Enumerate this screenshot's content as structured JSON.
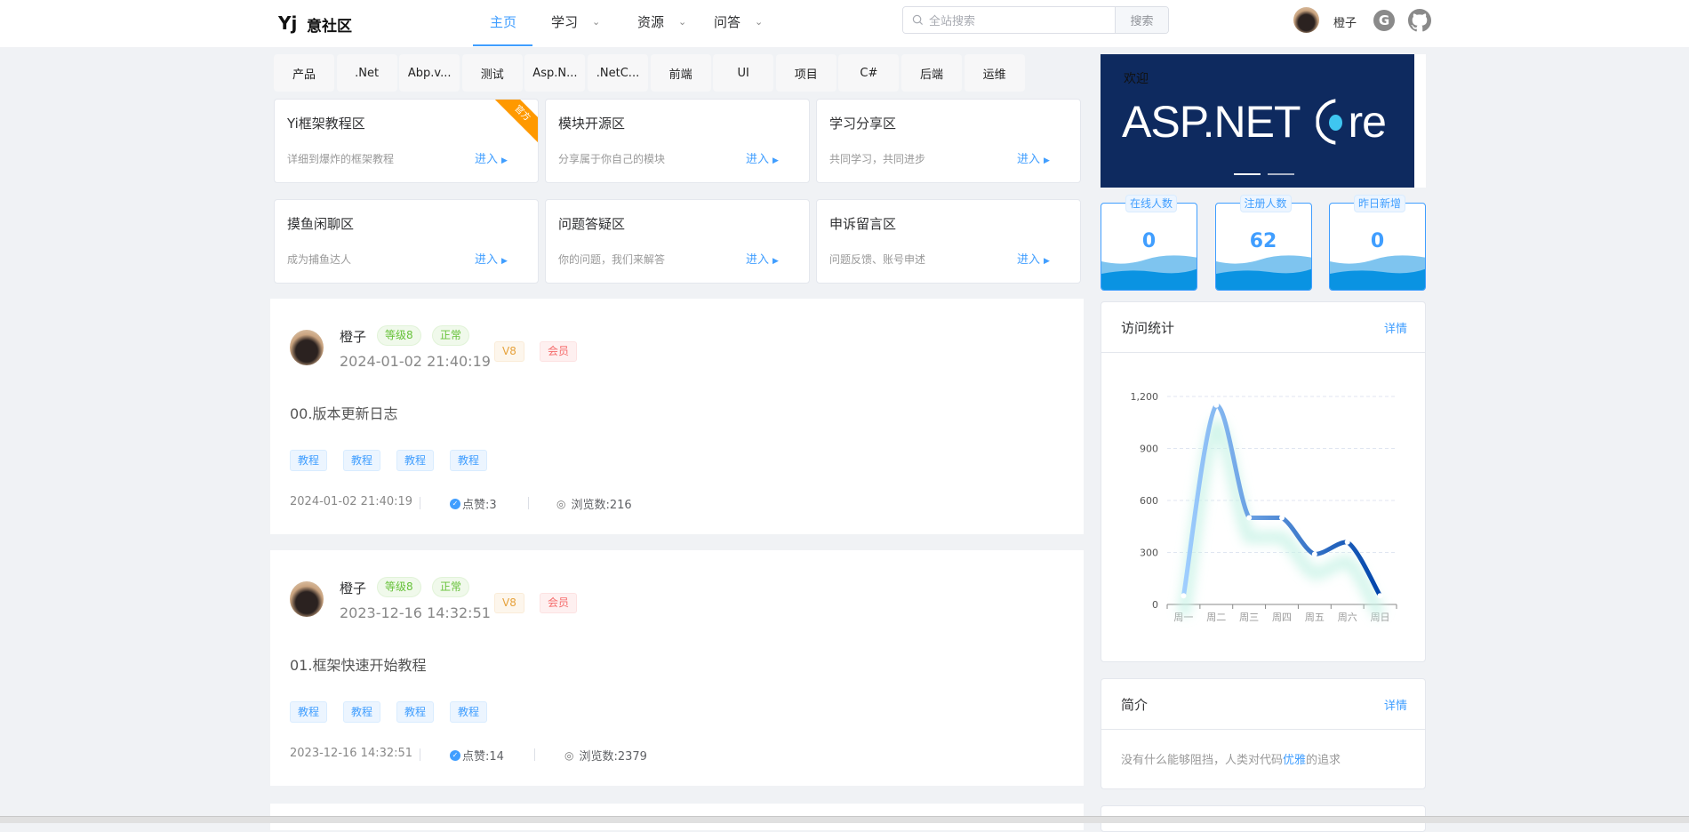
{
  "header": {
    "logo_mark": "Yj",
    "site_name": "意社区",
    "nav": [
      {
        "label": "主页",
        "active": true
      },
      {
        "label": "学习",
        "dropdown": true
      },
      {
        "label": "资源",
        "dropdown": true
      },
      {
        "label": "问答",
        "dropdown": true
      }
    ],
    "search_placeholder": "全站搜索",
    "search_button": "搜索",
    "user_name": "橙子",
    "icons": [
      "search-icon",
      "gitee-icon",
      "github-icon"
    ]
  },
  "categories": [
    "产品",
    ".Net",
    "Abp.v...",
    "测试",
    "Asp.N...",
    ".NetC...",
    "前端",
    "UI",
    "项目",
    "C#",
    "后端",
    "运维"
  ],
  "zones": [
    {
      "title": "Yi框架教程区",
      "desc": "详细到爆炸的框架教程",
      "enter": "进入",
      "ribbon": "官方"
    },
    {
      "title": "模块开源区",
      "desc": "分享属于你自己的模块",
      "enter": "进入"
    },
    {
      "title": "学习分享区",
      "desc": "共同学习，共同进步",
      "enter": "进入"
    },
    {
      "title": "摸鱼闲聊区",
      "desc": "成为捕鱼达人",
      "enter": "进入"
    },
    {
      "title": "问题答疑区",
      "desc": "你的问题，我们来解答",
      "enter": "进入"
    },
    {
      "title": "申诉留言区",
      "desc": "问题反馈、账号申述",
      "enter": "进入"
    }
  ],
  "posts": [
    {
      "author": "橙子",
      "level": "等级8",
      "status": "正常",
      "vip_level": "V8",
      "vip": "会员",
      "time": "2024-01-02 21:40:19",
      "title": "00.版本更新日志",
      "tags": [
        "教程",
        "教程",
        "教程",
        "教程"
      ],
      "likes": "点赞:3",
      "views": "浏览数:216"
    },
    {
      "author": "橙子",
      "level": "等级8",
      "status": "正常",
      "vip_level": "V8",
      "vip": "会员",
      "time": "2023-12-16 14:32:51",
      "title": "01.框架快速开始教程",
      "tags": [
        "教程",
        "教程",
        "教程",
        "教程"
      ],
      "likes": "点赞:14",
      "views": "浏览数:2379"
    }
  ],
  "banner": {
    "welcome": "欢迎",
    "logo_text": "ASP.NET Core",
    "logo_left": "ASP.NET ",
    "logo_right": "re",
    "slides": 2,
    "active_slide": 0
  },
  "stats": [
    {
      "label": "在线人数",
      "value": "0"
    },
    {
      "label": "注册人数",
      "value": "62"
    },
    {
      "label": "昨日新增",
      "value": "0"
    }
  ],
  "visits": {
    "title": "访问统计",
    "more": "详情"
  },
  "intro": {
    "title": "简介",
    "more": "详情",
    "text_before": "没有什么能够阻挡，人类对代码",
    "highlight": "优雅",
    "text_after": "的追求"
  },
  "colors": {
    "accent": "#409eff",
    "banner": "#0e2a5f",
    "line_start": "#a0cfff",
    "line_end": "#0044aa"
  },
  "chart_data": {
    "type": "line",
    "smooth": true,
    "categories": [
      "周一",
      "周二",
      "周三",
      "周四",
      "周五",
      "周六",
      "周日"
    ],
    "values": [
      50,
      1150,
      500,
      500,
      290,
      360,
      50
    ],
    "yticks": [
      "0",
      "300",
      "600",
      "900",
      "1,200"
    ],
    "ylim": [
      0,
      1200
    ],
    "grid": "horizontal dashed"
  }
}
